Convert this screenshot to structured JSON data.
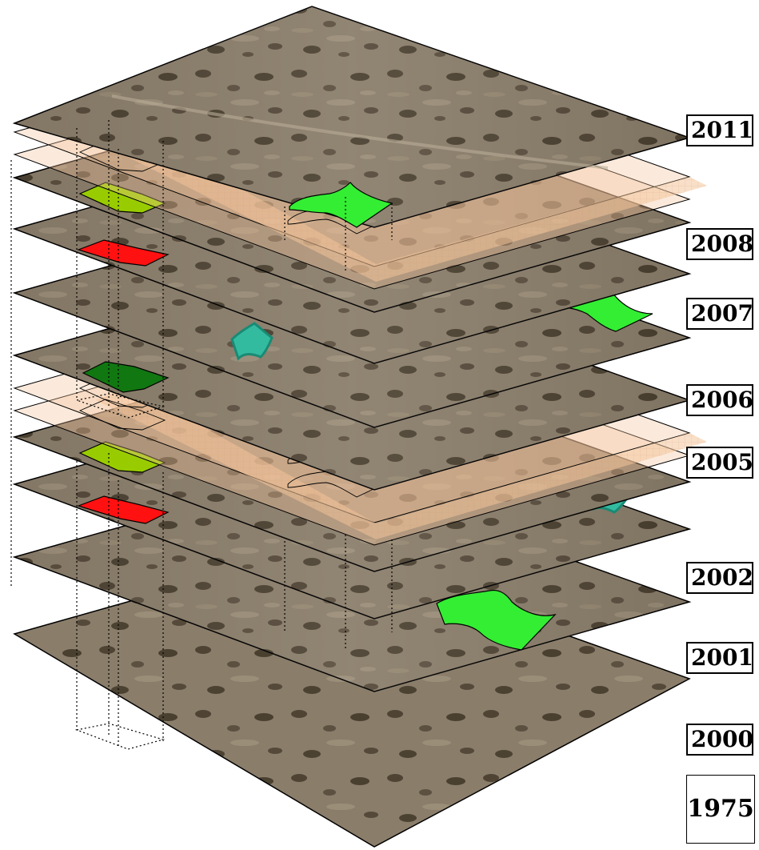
{
  "colors": {
    "aerial_base": "#8a7d6a",
    "band_fill": "#f3c49a",
    "light_green": "#33ee33",
    "olive_green": "#99cc00",
    "dark_green": "#117711",
    "red": "#ff1111",
    "teal": "#33bba0",
    "stroke": "#000000"
  },
  "layers": [
    {
      "key": "2011",
      "label": "2011"
    },
    {
      "key": "2008",
      "label": "2008"
    },
    {
      "key": "2007",
      "label": "2007"
    },
    {
      "key": "2006",
      "label": "2006"
    },
    {
      "key": "2005",
      "label": "2005"
    },
    {
      "key": "2002",
      "label": "2002"
    },
    {
      "key": "2001",
      "label": "2001"
    },
    {
      "key": "2000",
      "label": "2000"
    }
  ],
  "base_year": {
    "label": "1975"
  }
}
